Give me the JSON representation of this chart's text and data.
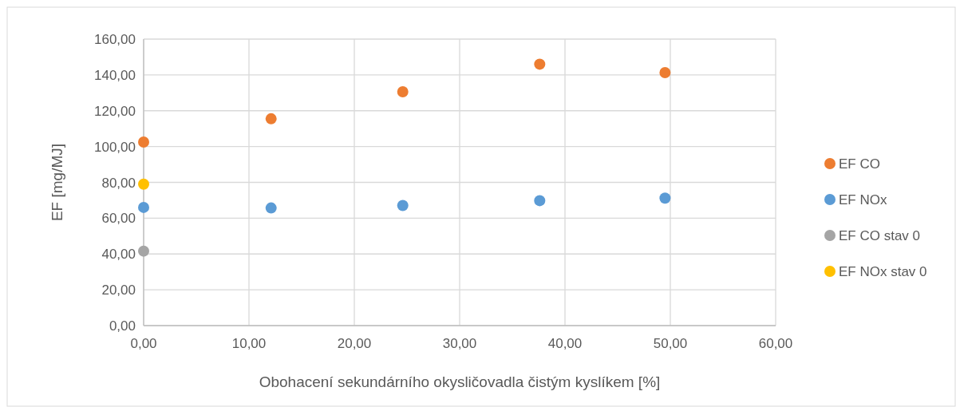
{
  "chart_data": {
    "type": "scatter",
    "xlabel": "Obohacení sekundárního okysličovadla čistým kyslíkem [%]",
    "ylabel": "EF [mg/MJ]",
    "series": [
      {
        "name": "EF CO",
        "color": "#ed7d31",
        "x": [
          0,
          12.1,
          24.6,
          37.6,
          49.5
        ],
        "values": [
          102.5,
          115.5,
          130.6,
          146.0,
          141.3
        ]
      },
      {
        "name": "EF NOx",
        "color": "#5b9bd5",
        "x": [
          0,
          12.1,
          24.6,
          37.6,
          49.5
        ],
        "values": [
          66.0,
          65.7,
          67.1,
          69.8,
          71.2
        ]
      },
      {
        "name": "EF CO stav 0",
        "color": "#a5a5a5",
        "x": [
          0
        ],
        "values": [
          41.6
        ]
      },
      {
        "name": "EF NOx stav 0",
        "color": "#ffc000",
        "x": [
          0
        ],
        "values": [
          79.0
        ]
      }
    ],
    "xlim": [
      0,
      60
    ],
    "xticks": [
      {
        "value": 0,
        "label": "0,00"
      },
      {
        "value": 10,
        "label": "10,00"
      },
      {
        "value": 20,
        "label": "20,00"
      },
      {
        "value": 30,
        "label": "30,00"
      },
      {
        "value": 40,
        "label": "40,00"
      },
      {
        "value": 50,
        "label": "50,00"
      },
      {
        "value": 60,
        "label": "60,00"
      }
    ],
    "ylim": [
      0,
      160
    ],
    "yticks": [
      {
        "value": 0,
        "label": "0,00"
      },
      {
        "value": 20,
        "label": "20,00"
      },
      {
        "value": 40,
        "label": "40,00"
      },
      {
        "value": 60,
        "label": "60,00"
      },
      {
        "value": 80,
        "label": "80,00"
      },
      {
        "value": 100,
        "label": "100,00"
      },
      {
        "value": 120,
        "label": "120,00"
      },
      {
        "value": 140,
        "label": "140,00"
      },
      {
        "value": 160,
        "label": "160,00"
      }
    ],
    "grid": true,
    "legend": "right",
    "marker": "circle"
  }
}
